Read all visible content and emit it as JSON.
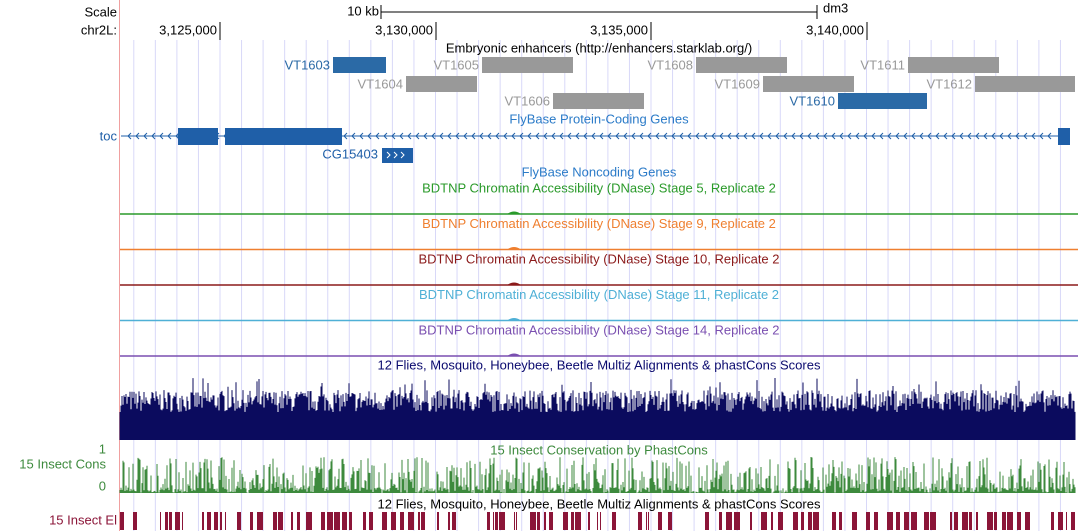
{
  "ruler": {
    "scale_label": "Scale",
    "scale_bar": "10 kb",
    "assembly": "dm3",
    "chrom_label": "chr2L:",
    "positions": [
      "3,125,000",
      "3,130,000",
      "3,135,000",
      "3,140,000"
    ]
  },
  "enhancers": {
    "title": "Embryonic enhancers (http://enhancers.starklab.org/)",
    "items": [
      "VT1603",
      "VT1604",
      "VT1605",
      "VT1606",
      "VT1608",
      "VT1609",
      "VT1610",
      "VT1611",
      "VT1612"
    ]
  },
  "genes": {
    "title": "FlyBase Protein-Coding Genes",
    "items": [
      "toc",
      "CG15403"
    ]
  },
  "noncoding": {
    "title": "FlyBase Noncoding Genes"
  },
  "dnase": [
    "BDTNP Chromatin Accessibility (DNase) Stage 5, Replicate 2",
    "BDTNP Chromatin Accessibility (DNase) Stage 9, Replicate 2",
    "BDTNP Chromatin Accessibility (DNase) Stage 10, Replicate 2",
    "BDTNP Chromatin Accessibility (DNase) Stage 11, Replicate 2",
    "BDTNP Chromatin Accessibility (DNase) Stage 14, Replicate 2"
  ],
  "multiz": {
    "title": "12 Flies, Mosquito, Honeybee, Beetle Multiz Alignments & phastCons Scores"
  },
  "cons": {
    "label": "15 Insect Cons",
    "top": "1",
    "bottom": "0",
    "title": "15 Insect Conservation by PhastCons"
  },
  "elements": {
    "title": "12 Flies, Mosquito, Honeybee, Beetle Multiz Alignments & phastCons Scores",
    "label": "15 Insect El"
  }
}
